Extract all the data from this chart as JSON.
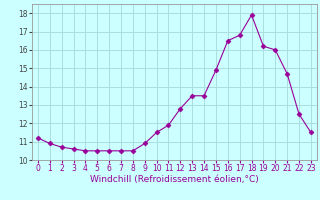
{
  "x": [
    0,
    1,
    2,
    3,
    4,
    5,
    6,
    7,
    8,
    9,
    10,
    11,
    12,
    13,
    14,
    15,
    16,
    17,
    18,
    19,
    20,
    21,
    22,
    23
  ],
  "y": [
    11.2,
    10.9,
    10.7,
    10.6,
    10.5,
    10.5,
    10.5,
    10.5,
    10.5,
    10.9,
    11.5,
    11.9,
    12.8,
    13.5,
    13.5,
    14.9,
    16.5,
    16.8,
    17.9,
    16.2,
    16.0,
    14.7,
    12.5,
    11.5
  ],
  "line_color": "#990099",
  "marker": "D",
  "marker_size": 2.5,
  "bg_color": "#ccffff",
  "grid_color": "#aadddd",
  "xlabel": "Windchill (Refroidissement éolien,°C)",
  "xlabel_fontsize": 6.5,
  "tick_fontsize": 5.5,
  "ylim": [
    10,
    18.5
  ],
  "yticks": [
    10,
    11,
    12,
    13,
    14,
    15,
    16,
    17,
    18
  ],
  "xlim": [
    -0.5,
    23.5
  ]
}
